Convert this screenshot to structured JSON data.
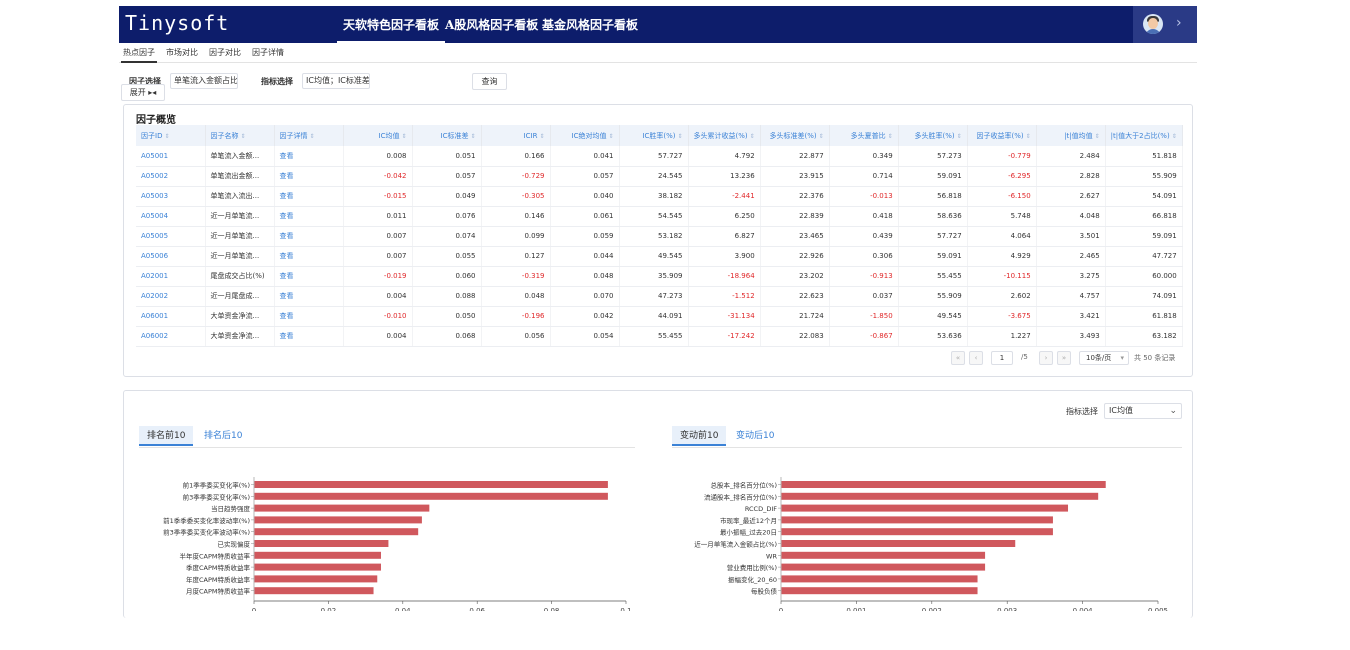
{
  "app": {
    "logo": "Tinysoft",
    "nav": [
      "天软特色因子看板",
      "A股风格因子看板",
      "基金风格因子看板"
    ],
    "active_nav": 0,
    "avatar_icon": "user-avatar-icon",
    "expand_icon": "chevron-right-icon"
  },
  "subtabs": [
    "热点因子",
    "市场对比",
    "因子对比",
    "因子详情"
  ],
  "filters": {
    "factor_label": "因子选择",
    "factor_value": "单笔流入金额占比",
    "expand_label": "展开 ▸◂",
    "metric_label": "指标选择",
    "metric_value": "IC均值；IC标准差",
    "query_button": "查询"
  },
  "overview": {
    "title": "因子概览",
    "columns": [
      "因子ID",
      "因子名称",
      "因子详情",
      "IC均值",
      "IC标准差",
      "ICIR",
      "IC绝对均值",
      "IC胜率(%)",
      "多头累计收益(%)",
      "多头标准差(%)",
      "多头夏普比",
      "多头胜率(%)",
      "因子收益率(%)",
      "|t|值均值",
      "|t|值大于2占比(%)"
    ],
    "rows": [
      {
        "id": "A05001",
        "name": "单笔流入金额...",
        "detail": "查看",
        "vals": [
          "0.008",
          "0.051",
          "0.166",
          "0.041",
          "57.727",
          "4.792",
          "22.877",
          "0.349",
          "57.273",
          "-0.779",
          "2.484",
          "51.818"
        ]
      },
      {
        "id": "A05002",
        "name": "单笔流出金额...",
        "detail": "查看",
        "vals": [
          "-0.042",
          "0.057",
          "-0.729",
          "0.057",
          "24.545",
          "13.236",
          "23.915",
          "0.714",
          "59.091",
          "-6.295",
          "2.828",
          "55.909"
        ]
      },
      {
        "id": "A05003",
        "name": "单笔流入流出...",
        "detail": "查看",
        "vals": [
          "-0.015",
          "0.049",
          "-0.305",
          "0.040",
          "38.182",
          "-2.441",
          "22.376",
          "-0.013",
          "56.818",
          "-6.150",
          "2.627",
          "54.091"
        ]
      },
      {
        "id": "A05004",
        "name": "近一月单笔流...",
        "detail": "查看",
        "vals": [
          "0.011",
          "0.076",
          "0.146",
          "0.061",
          "54.545",
          "6.250",
          "22.839",
          "0.418",
          "58.636",
          "5.748",
          "4.048",
          "66.818"
        ]
      },
      {
        "id": "A05005",
        "name": "近一月单笔流...",
        "detail": "查看",
        "vals": [
          "0.007",
          "0.074",
          "0.099",
          "0.059",
          "53.182",
          "6.827",
          "23.465",
          "0.439",
          "57.727",
          "4.064",
          "3.501",
          "59.091"
        ]
      },
      {
        "id": "A05006",
        "name": "近一月单笔流...",
        "detail": "查看",
        "vals": [
          "0.007",
          "0.055",
          "0.127",
          "0.044",
          "49.545",
          "3.900",
          "22.926",
          "0.306",
          "59.091",
          "4.929",
          "2.465",
          "47.727"
        ]
      },
      {
        "id": "A02001",
        "name": "尾盘成交占比(%)",
        "detail": "查看",
        "vals": [
          "-0.019",
          "0.060",
          "-0.319",
          "0.048",
          "35.909",
          "-18.964",
          "23.202",
          "-0.913",
          "55.455",
          "-10.115",
          "3.275",
          "60.000"
        ]
      },
      {
        "id": "A02002",
        "name": "近一月尾盘成...",
        "detail": "查看",
        "vals": [
          "0.004",
          "0.088",
          "0.048",
          "0.070",
          "47.273",
          "-1.512",
          "22.623",
          "0.037",
          "55.909",
          "2.602",
          "4.757",
          "74.091"
        ]
      },
      {
        "id": "A06001",
        "name": "大单资金净流...",
        "detail": "查看",
        "vals": [
          "-0.010",
          "0.050",
          "-0.196",
          "0.042",
          "44.091",
          "-31.134",
          "21.724",
          "-1.850",
          "49.545",
          "-3.675",
          "3.421",
          "61.818"
        ]
      },
      {
        "id": "A06002",
        "name": "大单资金净流...",
        "detail": "查看",
        "vals": [
          "0.004",
          "0.068",
          "0.056",
          "0.054",
          "55.455",
          "-17.242",
          "22.083",
          "-0.867",
          "53.636",
          "1.227",
          "3.493",
          "63.182"
        ]
      }
    ],
    "pager": {
      "current": "1",
      "total_pages": "/5",
      "page_size": "10条/页",
      "total": "共 50 条记录"
    }
  },
  "charts": {
    "metric_label": "指标选择",
    "metric_value": "IC均值",
    "left_tabs": [
      "排名前10",
      "排名后10"
    ],
    "right_tabs": [
      "变动前10",
      "变动后10"
    ]
  },
  "chart_data": [
    {
      "type": "bar",
      "orientation": "horizontal",
      "categories": [
        "前1季季委买变化率(%)",
        "前3季季委买变化率(%)",
        "当日趋势强度",
        "前1季季委买变化率波动率(%)",
        "前3季季委买变化率波动率(%)",
        "已实现偏度",
        "半年度CAPM特质收益率",
        "季度CAPM特质收益率",
        "年度CAPM特质收益率",
        "月度CAPM特质收益率"
      ],
      "values": [
        0.095,
        0.095,
        0.047,
        0.045,
        0.044,
        0.036,
        0.034,
        0.034,
        0.033,
        0.032
      ],
      "xlim": [
        0,
        0.1
      ],
      "xticks": [
        "0",
        "0.02",
        "0.04",
        "0.06",
        "0.08",
        "0.1"
      ],
      "color": "#d0585d"
    },
    {
      "type": "bar",
      "orientation": "horizontal",
      "categories": [
        "总股本_排名百分位(%)",
        "流通股本_排名百分位(%)",
        "RCCD_DIF",
        "市现率_最近12个月",
        "最小振幅_过去20日",
        "近一月单笔流入金额占比(%)",
        "WR",
        "营业费用比例(%)",
        "振幅变化_20_60",
        "每股负债"
      ],
      "values": [
        0.0043,
        0.0042,
        0.0038,
        0.0036,
        0.0036,
        0.0031,
        0.0027,
        0.0027,
        0.0026,
        0.0026
      ],
      "xlim": [
        0,
        0.005
      ],
      "xticks": [
        "0",
        "0.001",
        "0.002",
        "0.003",
        "0.004",
        "0.005"
      ],
      "color": "#d0585d"
    }
  ]
}
